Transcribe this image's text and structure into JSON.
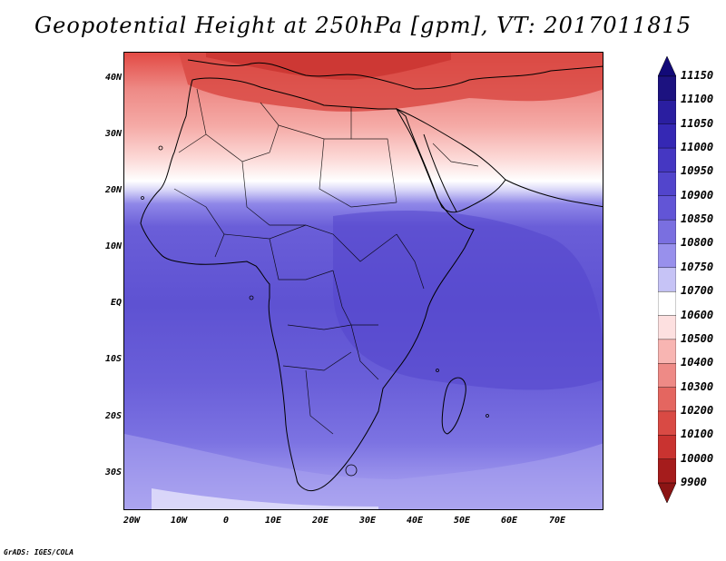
{
  "title": "Geopotential Height at 250hPa [gpm], VT: 2017011815",
  "lat_labels": [
    "40N",
    "30N",
    "20N",
    "10N",
    "EQ",
    "10S",
    "20S",
    "30S"
  ],
  "lon_labels": [
    "20W",
    "10W",
    "0",
    "10E",
    "20E",
    "30E",
    "40E",
    "50E",
    "60E",
    "70E"
  ],
  "colorbar": {
    "levels": [
      "11150",
      "11100",
      "11050",
      "11000",
      "10950",
      "10900",
      "10850",
      "10800",
      "10750",
      "10700",
      "10600",
      "10500",
      "10400",
      "10300",
      "10200",
      "10100",
      "10000",
      "9900"
    ],
    "colors": [
      "#1c1280",
      "#2a1ea0",
      "#3528b4",
      "#4537c2",
      "#5245cc",
      "#6255d6",
      "#7a6fe0",
      "#9890ec",
      "#c6c3f6",
      "#ffffff",
      "#fde0e0",
      "#f8b5b2",
      "#ee8a86",
      "#e46660",
      "#d94a44",
      "#c93330",
      "#a51c1c"
    ],
    "top_arrow_color": "#120a78",
    "bottom_arrow_color": "#8b1414"
  },
  "footer": "GrADS: IGES/COLA"
}
